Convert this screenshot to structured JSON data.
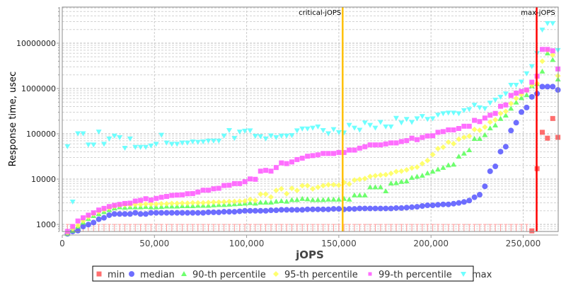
{
  "chart_data": {
    "type": "scatter",
    "xlabel": "jOPS",
    "ylabel": "Response time, usec",
    "xlim": [
      0,
      269000
    ],
    "ylim": [
      698,
      62700000
    ],
    "yscale": "log",
    "grid": true,
    "legend_position": "bottom",
    "x_ticks": [
      "0",
      "50,000",
      "100,000",
      "150,000",
      "200,000",
      "250,000"
    ],
    "x_tick_values": [
      0,
      50000,
      100000,
      150000,
      200000,
      250000
    ],
    "y_ticks": [
      "1000",
      "10000",
      "100000",
      "1000000",
      "10000000"
    ],
    "y_tick_values": [
      1000,
      10000,
      100000,
      1000000,
      10000000
    ],
    "markers": [
      {
        "label": "critical-jOPS",
        "x": 152070,
        "color": "#ffc000"
      },
      {
        "label": "max-jOPS",
        "x": 257300,
        "color": "#ff0000"
      }
    ],
    "x": [
      2830,
      5660,
      8490,
      11320,
      14150,
      16980,
      19810,
      22640,
      25470,
      28300,
      31130,
      33960,
      36790,
      39620,
      42450,
      45280,
      48110,
      50940,
      53770,
      56600,
      59430,
      62260,
      65090,
      67920,
      70750,
      73580,
      76410,
      79240,
      82070,
      84900,
      87730,
      90560,
      93390,
      96220,
      99050,
      101880,
      104710,
      107540,
      110370,
      113200,
      116030,
      118860,
      121690,
      124520,
      127350,
      130180,
      133010,
      135840,
      138670,
      141500,
      144330,
      147160,
      149990,
      152820,
      155650,
      158480,
      161310,
      164140,
      166970,
      169800,
      172630,
      175460,
      178290,
      181120,
      183950,
      186780,
      189610,
      192440,
      195270,
      198100,
      200930,
      203760,
      206590,
      209420,
      212250,
      215080,
      217910,
      220740,
      223570,
      226400,
      229230,
      232060,
      234890,
      237720,
      240550,
      243380,
      246210,
      249040,
      251870,
      254700,
      257530,
      260360,
      263190,
      266020,
      268850
    ],
    "series": [
      {
        "name": "min",
        "color": "#ff5555",
        "marker": "square",
        "values": [
          null,
          null,
          null,
          null,
          null,
          null,
          null,
          null,
          null,
          null,
          null,
          null,
          null,
          null,
          null,
          null,
          null,
          null,
          null,
          null,
          null,
          null,
          null,
          null,
          null,
          null,
          null,
          null,
          null,
          null,
          null,
          null,
          null,
          null,
          null,
          null,
          null,
          null,
          null,
          null,
          null,
          null,
          null,
          null,
          null,
          null,
          null,
          null,
          null,
          null,
          null,
          null,
          null,
          null,
          null,
          null,
          null,
          null,
          null,
          null,
          null,
          null,
          null,
          null,
          null,
          null,
          null,
          null,
          null,
          null,
          null,
          null,
          null,
          null,
          null,
          null,
          null,
          null,
          null,
          null,
          null,
          null,
          null,
          null,
          null,
          null,
          null,
          null,
          null,
          720,
          17000,
          108000,
          80100,
          218000,
          83600
        ]
      },
      {
        "name": "median",
        "color": "#5555ff",
        "marker": "circle",
        "values": [
          620,
          700,
          730,
          900,
          990,
          1100,
          1300,
          1400,
          1600,
          1700,
          1700,
          1700,
          1700,
          1800,
          1700,
          1700,
          1800,
          1800,
          1800,
          1800,
          1800,
          1800,
          1800,
          1800,
          1800,
          1800,
          1800,
          1850,
          1850,
          1850,
          1900,
          1900,
          1900,
          1950,
          2000,
          2000,
          2000,
          2000,
          2000,
          2050,
          2050,
          2100,
          2100,
          2100,
          2100,
          2100,
          2150,
          2150,
          2150,
          2150,
          2150,
          2200,
          2200,
          2150,
          2200,
          2200,
          2250,
          2250,
          2250,
          2250,
          2250,
          2250,
          2250,
          2300,
          2300,
          2350,
          2400,
          2450,
          2550,
          2640,
          2640,
          2710,
          2770,
          2770,
          2870,
          2980,
          3130,
          3370,
          3970,
          4530,
          6930,
          14900,
          19100,
          40400,
          52000,
          118000,
          176000,
          302000,
          380000,
          654000,
          770000,
          1100000,
          1100000,
          1100000,
          930000
        ]
      },
      {
        "name": "90-th percentile",
        "color": "#55ff55",
        "marker": "triangle-up",
        "values": [
          620,
          730,
          900,
          1110,
          1330,
          1540,
          1700,
          1890,
          2080,
          2290,
          2400,
          2350,
          2400,
          2400,
          2400,
          2450,
          2400,
          2400,
          2450,
          2500,
          2500,
          2500,
          2550,
          2550,
          2550,
          2600,
          2600,
          2600,
          2650,
          2700,
          2700,
          2750,
          2800,
          2850,
          2910,
          2980,
          2910,
          3050,
          3050,
          3050,
          3200,
          3280,
          3200,
          3480,
          3480,
          3690,
          3600,
          3480,
          3480,
          3500,
          3550,
          3550,
          3550,
          3690,
          3550,
          4420,
          4420,
          4420,
          6640,
          6640,
          6640,
          5430,
          8070,
          8200,
          8760,
          9000,
          10770,
          11400,
          11960,
          13500,
          14700,
          16400,
          17900,
          20300,
          21000,
          31600,
          36800,
          43700,
          77900,
          77900,
          94200,
          133000,
          154000,
          215000,
          255000,
          362000,
          494000,
          618000,
          718000,
          1140000,
          1270000,
          2380000,
          6000000,
          4300000,
          1600000
        ]
      },
      {
        "name": "95-th percentile",
        "color": "#ffff55",
        "marker": "diamond",
        "values": [
          650,
          800,
          950,
          1200,
          1450,
          1700,
          1900,
          2100,
          2300,
          2500,
          2650,
          2700,
          2700,
          2750,
          2750,
          2800,
          2800,
          2800,
          2850,
          2850,
          2900,
          2900,
          2950,
          2950,
          3000,
          3000,
          3000,
          3050,
          3100,
          3100,
          3150,
          3200,
          3200,
          3250,
          3280,
          3560,
          3370,
          4650,
          4650,
          4020,
          5630,
          6110,
          4760,
          6270,
          5630,
          7160,
          7160,
          6110,
          6640,
          7160,
          7500,
          7500,
          7330,
          8430,
          7780,
          9520,
          9890,
          10260,
          11440,
          11850,
          12280,
          12550,
          13330,
          14650,
          15000,
          15950,
          17570,
          18450,
          22000,
          25700,
          34800,
          46900,
          50800,
          65500,
          60500,
          76000,
          83600,
          89000,
          125000,
          120000,
          141000,
          181000,
          204000,
          282000,
          312000,
          466000,
          605000,
          740000,
          910000,
          1200000,
          1300000,
          4000000,
          7000000,
          5500000,
          1900000
        ]
      },
      {
        "name": "99-th percentile",
        "color": "#ff55ff",
        "marker": "square",
        "values": [
          700,
          900,
          1190,
          1400,
          1600,
          1800,
          2080,
          2260,
          2480,
          2640,
          2770,
          2900,
          2950,
          3280,
          3400,
          3690,
          3450,
          3750,
          3970,
          4150,
          4370,
          4450,
          4500,
          4750,
          4800,
          5180,
          5690,
          5690,
          6110,
          6270,
          7230,
          7330,
          7960,
          7960,
          8760,
          10100,
          9900,
          15000,
          15600,
          15000,
          18000,
          22800,
          22000,
          23900,
          27000,
          29000,
          32000,
          33000,
          34300,
          36800,
          36800,
          36800,
          38700,
          38700,
          43700,
          43700,
          48200,
          51800,
          56900,
          56900,
          56900,
          59700,
          62900,
          62900,
          67500,
          70700,
          80100,
          74300,
          83000,
          89600,
          90600,
          108000,
          112000,
          122000,
          122000,
          131000,
          147000,
          147000,
          198000,
          186000,
          223000,
          257000,
          282000,
          405000,
          433000,
          700000,
          790000,
          860000,
          930000,
          1380000,
          1870000,
          7300000,
          7300000,
          6800000,
          2700000
        ]
      },
      {
        "name": "max",
        "color": "#55ffff",
        "marker": "triangle-down",
        "values": [
          52800,
          3160,
          102000,
          102000,
          57500,
          57500,
          111000,
          59700,
          78000,
          90600,
          83600,
          48700,
          78000,
          51000,
          51000,
          51000,
          54700,
          59700,
          94200,
          63500,
          59700,
          59700,
          63500,
          63500,
          67500,
          66000,
          67500,
          70000,
          70000,
          70000,
          90600,
          120000,
          80100,
          111000,
          116000,
          118000,
          89600,
          88000,
          78000,
          91500,
          83600,
          90600,
          90600,
          92700,
          118000,
          130000,
          130000,
          135000,
          144000,
          120000,
          102000,
          126000,
          108000,
          106000,
          156000,
          135000,
          122000,
          176000,
          156000,
          135000,
          181000,
          144000,
          144000,
          223000,
          176000,
          211000,
          181000,
          218000,
          245000,
          211000,
          218000,
          262000,
          282000,
          290000,
          290000,
          282000,
          330000,
          348000,
          433000,
          380000,
          362000,
          483000,
          563000,
          654000,
          770000,
          1200000,
          1200000,
          1410000,
          2150000,
          3100000,
          6000000,
          19800000,
          27500000,
          27500000,
          7000000
        ]
      }
    ]
  }
}
